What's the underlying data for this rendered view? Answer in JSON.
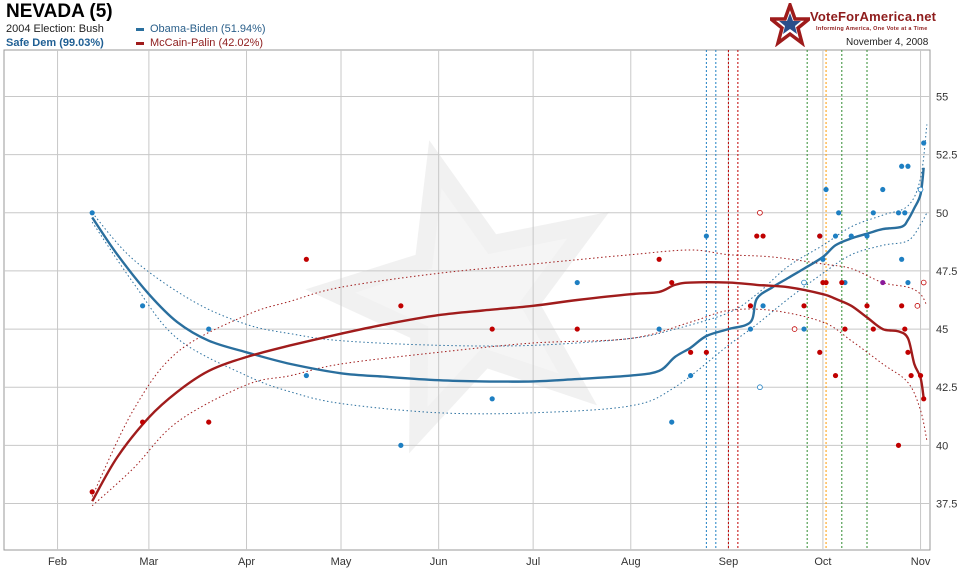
{
  "header": {
    "title": "NEVADA (5)",
    "election_2004": "2004 Election: Bush",
    "status": "Safe Dem (99.03%)",
    "date": "November 4, 2008"
  },
  "brand": {
    "name": "VoteForAmerica.net",
    "tagline": "Informing America, One Vote at a Time"
  },
  "colors": {
    "dem": "#2a6f9e",
    "rep": "#a01c1c",
    "point_dem": "#1e7fc2",
    "point_rep": "#c00000",
    "grid": "#bbbbbb"
  },
  "chart_data": {
    "type": "line",
    "title": "NEVADA (5)",
    "x_axis": {
      "type": "date",
      "range": [
        "2008-01-15",
        "2008-11-04"
      ],
      "tick_labels": [
        "Feb",
        "Mar",
        "Apr",
        "May",
        "Jun",
        "Jul",
        "Aug",
        "Sep",
        "Oct",
        "Nov"
      ],
      "tick_dates": [
        "2008-02-01",
        "2008-03-01",
        "2008-04-01",
        "2008-05-01",
        "2008-06-01",
        "2008-07-01",
        "2008-08-01",
        "2008-09-01",
        "2008-10-01",
        "2008-11-01"
      ]
    },
    "y_axis": {
      "range": [
        35.5,
        57
      ],
      "ticks": [
        "37.5",
        "40",
        "42.5",
        "45",
        "47.5",
        "50",
        "52.5",
        "55"
      ],
      "tick_values": [
        37.5,
        40,
        42.5,
        45,
        47.5,
        50,
        52.5,
        55
      ],
      "side": "right"
    },
    "grid": true,
    "legend": "top-left",
    "series": [
      {
        "name": "Obama-Biden (51.94%)",
        "color": "#2a6f9e",
        "trend": [
          [
            "2008-02-12",
            49.8
          ],
          [
            "2008-02-20",
            48.2
          ],
          [
            "2008-03-01",
            46.5
          ],
          [
            "2008-03-10",
            45.3
          ],
          [
            "2008-03-20",
            44.5
          ],
          [
            "2008-04-01",
            44.0
          ],
          [
            "2008-04-15",
            43.5
          ],
          [
            "2008-05-01",
            43.1
          ],
          [
            "2008-05-15",
            42.95
          ],
          [
            "2008-06-01",
            42.8
          ],
          [
            "2008-06-15",
            42.75
          ],
          [
            "2008-07-01",
            42.75
          ],
          [
            "2008-07-15",
            42.85
          ],
          [
            "2008-08-01",
            43.0
          ],
          [
            "2008-08-10",
            43.2
          ],
          [
            "2008-08-15",
            43.8
          ],
          [
            "2008-08-20",
            44.2
          ],
          [
            "2008-08-25",
            44.7
          ],
          [
            "2008-09-01",
            45.0
          ],
          [
            "2008-09-08",
            45.3
          ],
          [
            "2008-09-10",
            46.3
          ],
          [
            "2008-09-15",
            46.8
          ],
          [
            "2008-09-20",
            47.2
          ],
          [
            "2008-09-25",
            47.6
          ],
          [
            "2008-10-01",
            48.1
          ],
          [
            "2008-10-05",
            48.6
          ],
          [
            "2008-10-10",
            48.9
          ],
          [
            "2008-10-15",
            49.1
          ],
          [
            "2008-10-20",
            49.3
          ],
          [
            "2008-10-26",
            49.4
          ],
          [
            "2008-10-28",
            49.7
          ],
          [
            "2008-10-30",
            50.2
          ],
          [
            "2008-11-01",
            50.8
          ],
          [
            "2008-11-02",
            51.94
          ]
        ],
        "upper": [
          [
            "2008-02-12",
            50.0
          ],
          [
            "2008-02-25",
            48.0
          ],
          [
            "2008-03-15",
            46.2
          ],
          [
            "2008-04-01",
            45.2
          ],
          [
            "2008-04-15",
            44.8
          ],
          [
            "2008-05-01",
            44.5
          ],
          [
            "2008-06-01",
            44.3
          ],
          [
            "2008-07-01",
            44.3
          ],
          [
            "2008-08-01",
            44.6
          ],
          [
            "2008-08-15",
            45.0
          ],
          [
            "2008-09-01",
            45.7
          ],
          [
            "2008-09-10",
            46.5
          ],
          [
            "2008-09-20",
            47.7
          ],
          [
            "2008-10-01",
            48.6
          ],
          [
            "2008-10-10",
            49.4
          ],
          [
            "2008-10-20",
            49.9
          ],
          [
            "2008-10-28",
            50.3
          ],
          [
            "2008-11-01",
            51.5
          ],
          [
            "2008-11-03",
            53.8
          ]
        ],
        "lower": [
          [
            "2008-02-12",
            49.6
          ],
          [
            "2008-02-25",
            47.0
          ],
          [
            "2008-03-10",
            44.6
          ],
          [
            "2008-04-01",
            43.0
          ],
          [
            "2008-04-15",
            42.3
          ],
          [
            "2008-05-01",
            41.8
          ],
          [
            "2008-06-01",
            41.4
          ],
          [
            "2008-07-01",
            41.4
          ],
          [
            "2008-08-01",
            41.7
          ],
          [
            "2008-08-15",
            42.5
          ],
          [
            "2008-09-01",
            44.3
          ],
          [
            "2008-09-10",
            45.2
          ],
          [
            "2008-09-20",
            46.3
          ],
          [
            "2008-10-01",
            47.4
          ],
          [
            "2008-10-10",
            48.2
          ],
          [
            "2008-10-20",
            48.6
          ],
          [
            "2008-10-28",
            48.8
          ],
          [
            "2008-11-01",
            49.5
          ],
          [
            "2008-11-03",
            50.0
          ]
        ],
        "polls": [
          [
            "2008-02-12",
            50
          ],
          [
            "2008-02-28",
            46
          ],
          [
            "2008-03-20",
            45
          ],
          [
            "2008-04-20",
            43
          ],
          [
            "2008-05-20",
            40
          ],
          [
            "2008-06-18",
            42
          ],
          [
            "2008-07-15",
            47
          ],
          [
            "2008-08-10",
            45
          ],
          [
            "2008-08-14",
            41
          ],
          [
            "2008-08-20",
            43
          ],
          [
            "2008-08-25",
            49
          ],
          [
            "2008-09-08",
            45
          ],
          [
            "2008-09-12",
            46
          ],
          [
            "2008-09-25",
            45
          ],
          [
            "2008-09-30",
            49
          ],
          [
            "2008-10-01",
            48
          ],
          [
            "2008-10-02",
            51
          ],
          [
            "2008-10-05",
            49
          ],
          [
            "2008-10-06",
            50
          ],
          [
            "2008-10-08",
            47
          ],
          [
            "2008-10-10",
            49
          ],
          [
            "2008-10-15",
            49
          ],
          [
            "2008-10-17",
            50
          ],
          [
            "2008-10-20",
            51
          ],
          [
            "2008-10-25",
            50
          ],
          [
            "2008-10-26",
            48
          ],
          [
            "2008-10-26",
            52
          ],
          [
            "2008-10-27",
            50
          ],
          [
            "2008-10-28",
            47
          ],
          [
            "2008-10-28",
            52
          ],
          [
            "2008-11-01",
            51
          ],
          [
            "2008-11-02",
            53
          ]
        ],
        "polls_open": [
          [
            "2008-09-11",
            42.5
          ],
          [
            "2008-09-25",
            47
          ],
          [
            "2008-11-01",
            51
          ]
        ]
      },
      {
        "name": "McCain-Palin (42.02%)",
        "color": "#a01c1c",
        "trend": [
          [
            "2008-02-12",
            37.6
          ],
          [
            "2008-02-20",
            39.5
          ],
          [
            "2008-03-01",
            41.2
          ],
          [
            "2008-03-10",
            42.3
          ],
          [
            "2008-03-20",
            43.2
          ],
          [
            "2008-04-01",
            43.8
          ],
          [
            "2008-04-15",
            44.3
          ],
          [
            "2008-05-01",
            44.8
          ],
          [
            "2008-05-15",
            45.2
          ],
          [
            "2008-06-01",
            45.6
          ],
          [
            "2008-06-15",
            45.8
          ],
          [
            "2008-07-01",
            46.0
          ],
          [
            "2008-07-15",
            46.25
          ],
          [
            "2008-08-01",
            46.5
          ],
          [
            "2008-08-10",
            46.6
          ],
          [
            "2008-08-15",
            46.9
          ],
          [
            "2008-08-20",
            47.0
          ],
          [
            "2008-09-01",
            47.0
          ],
          [
            "2008-09-10",
            46.9
          ],
          [
            "2008-09-20",
            46.8
          ],
          [
            "2008-10-01",
            46.5
          ],
          [
            "2008-10-05",
            46.3
          ],
          [
            "2008-10-10",
            46.0
          ],
          [
            "2008-10-15",
            45.5
          ],
          [
            "2008-10-20",
            45.0
          ],
          [
            "2008-10-25",
            44.9
          ],
          [
            "2008-10-28",
            44.6
          ],
          [
            "2008-10-30",
            43.5
          ],
          [
            "2008-11-01",
            42.9
          ],
          [
            "2008-11-02",
            42.02
          ]
        ],
        "upper": [
          [
            "2008-02-12",
            37.8
          ],
          [
            "2008-02-25",
            41.5
          ],
          [
            "2008-03-10",
            44.0
          ],
          [
            "2008-04-01",
            45.6
          ],
          [
            "2008-04-15",
            46.2
          ],
          [
            "2008-05-01",
            46.8
          ],
          [
            "2008-06-01",
            47.4
          ],
          [
            "2008-07-01",
            47.8
          ],
          [
            "2008-08-01",
            48.2
          ],
          [
            "2008-08-20",
            48.4
          ],
          [
            "2008-09-01",
            48.2
          ],
          [
            "2008-09-15",
            48.1
          ],
          [
            "2008-10-01",
            47.8
          ],
          [
            "2008-10-10",
            47.6
          ],
          [
            "2008-10-20",
            47.0
          ],
          [
            "2008-10-28",
            46.8
          ],
          [
            "2008-11-01",
            46.5
          ],
          [
            "2008-11-03",
            46.0
          ]
        ],
        "lower": [
          [
            "2008-02-12",
            37.4
          ],
          [
            "2008-02-25",
            39.0
          ],
          [
            "2008-03-10",
            41.0
          ],
          [
            "2008-04-01",
            42.6
          ],
          [
            "2008-04-15",
            43.0
          ],
          [
            "2008-05-01",
            43.5
          ],
          [
            "2008-06-01",
            44.0
          ],
          [
            "2008-07-01",
            44.4
          ],
          [
            "2008-08-01",
            44.6
          ],
          [
            "2008-08-20",
            45.3
          ],
          [
            "2008-09-01",
            45.8
          ],
          [
            "2008-09-15",
            45.8
          ],
          [
            "2008-10-01",
            45.3
          ],
          [
            "2008-10-10",
            44.5
          ],
          [
            "2008-10-20",
            43.5
          ],
          [
            "2008-10-28",
            42.7
          ],
          [
            "2008-11-01",
            41.5
          ],
          [
            "2008-11-03",
            40.2
          ]
        ],
        "polls": [
          [
            "2008-02-12",
            38
          ],
          [
            "2008-02-28",
            41
          ],
          [
            "2008-03-20",
            41
          ],
          [
            "2008-04-20",
            48
          ],
          [
            "2008-05-20",
            46
          ],
          [
            "2008-06-18",
            45
          ],
          [
            "2008-07-15",
            45
          ],
          [
            "2008-08-10",
            48
          ],
          [
            "2008-08-14",
            47
          ],
          [
            "2008-08-20",
            44
          ],
          [
            "2008-08-25",
            44
          ],
          [
            "2008-09-08",
            46
          ],
          [
            "2008-09-10",
            49
          ],
          [
            "2008-09-12",
            49
          ],
          [
            "2008-09-25",
            46
          ],
          [
            "2008-09-30",
            49
          ],
          [
            "2008-09-30",
            44
          ],
          [
            "2008-10-01",
            47
          ],
          [
            "2008-10-02",
            47
          ],
          [
            "2008-10-05",
            43
          ],
          [
            "2008-10-07",
            47
          ],
          [
            "2008-10-08",
            45
          ],
          [
            "2008-10-15",
            46
          ],
          [
            "2008-10-17",
            45
          ],
          [
            "2008-10-25",
            40
          ],
          [
            "2008-10-26",
            46
          ],
          [
            "2008-10-27",
            45
          ],
          [
            "2008-10-28",
            44
          ],
          [
            "2008-10-29",
            43
          ],
          [
            "2008-11-01",
            43
          ],
          [
            "2008-11-02",
            42
          ]
        ],
        "polls_open": [
          [
            "2008-09-11",
            50
          ],
          [
            "2008-09-22",
            45
          ],
          [
            "2008-10-31",
            46
          ],
          [
            "2008-11-02",
            47
          ]
        ]
      }
    ],
    "purple_polls": [
      [
        "2008-10-20",
        47
      ]
    ],
    "event_lines": [
      {
        "date": "2008-08-25",
        "color": "#1e7fc2"
      },
      {
        "date": "2008-08-28",
        "color": "#1e7fc2"
      },
      {
        "date": "2008-09-01",
        "color": "#c00000"
      },
      {
        "date": "2008-09-04",
        "color": "#c00000"
      },
      {
        "date": "2008-09-26",
        "color": "#2e8b2e"
      },
      {
        "date": "2008-10-02",
        "color": "#ff9900"
      },
      {
        "date": "2008-10-07",
        "color": "#2e8b2e"
      },
      {
        "date": "2008-10-15",
        "color": "#2e8b2e"
      }
    ]
  }
}
